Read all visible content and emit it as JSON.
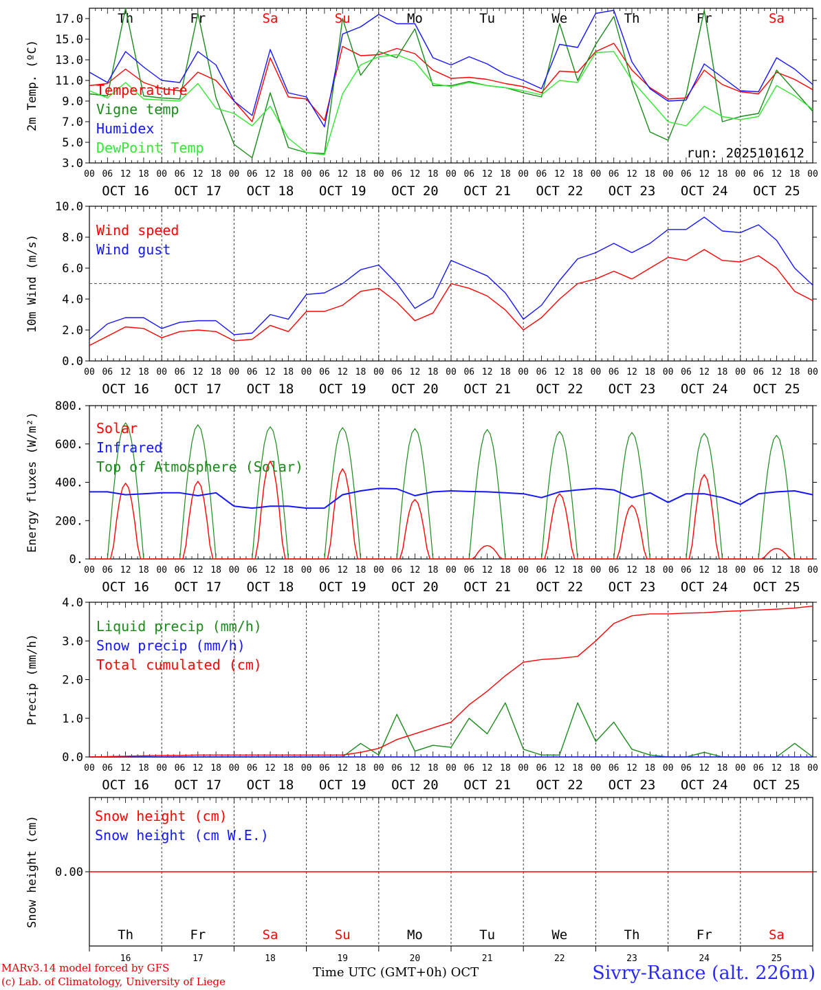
{
  "colors": {
    "red": "#ff0000",
    "green": "#1a8a1a",
    "blue": "#1515ff",
    "lime": "#33e833",
    "axis": "#000000"
  },
  "days": {
    "weekday": [
      "Th",
      "Fr",
      "Sa",
      "Su",
      "Mo",
      "Tu",
      "We",
      "Th",
      "Fr",
      "Sa"
    ],
    "weekend": [
      false,
      false,
      true,
      true,
      false,
      false,
      false,
      false,
      false,
      true
    ],
    "dates": [
      "OCT 16",
      "OCT 17",
      "OCT 18",
      "OCT 19",
      "OCT 20",
      "OCT 21",
      "OCT 22",
      "OCT 23",
      "OCT 24",
      "OCT 25"
    ],
    "day_numbers": [
      "16",
      "17",
      "18",
      "19",
      "20",
      "21",
      "22",
      "23",
      "24",
      "25"
    ],
    "hour_labels": [
      "00",
      "06",
      "12",
      "18"
    ],
    "end_label": "00"
  },
  "footer": {
    "model": "MARv3.14 model forced by GFS",
    "lab": "(c) Lab. of Climatology, University of Liege",
    "axis_title": "Time UTC (GMT+0h) OCT",
    "station": "Sivry-Rance (alt. 226m)"
  },
  "chart_data": [
    {
      "type": "line",
      "title": "",
      "ylabel": "2m Temp. (ºC)",
      "ylim": [
        3,
        18
      ],
      "yticks": [
        3,
        5,
        7,
        9,
        11,
        13,
        15,
        17
      ],
      "ytick_labels": [
        "3.0",
        "5.0",
        "7.0",
        "9.0",
        "11.0",
        "13.0",
        "15.0",
        "17.0"
      ],
      "annotation": "run: 2025101612",
      "show_weekdays": true,
      "legend": [
        {
          "name": "Temperature",
          "color": "#ff0000"
        },
        {
          "name": "Vigne temp",
          "color": "#1a8a1a"
        },
        {
          "name": "Humidex",
          "color": "#1515ff"
        },
        {
          "name": "DewPoint Temp",
          "color": "#33e833"
        }
      ],
      "x_hours": [
        0,
        6,
        12,
        18,
        24,
        30,
        36,
        42,
        48,
        54,
        60,
        66,
        72,
        78,
        84,
        90,
        96,
        102,
        108,
        114,
        120,
        126,
        132,
        138,
        144,
        150,
        156,
        162,
        168,
        174,
        180,
        186,
        192,
        198,
        204,
        210,
        216,
        222,
        228,
        234,
        240
      ],
      "series": [
        {
          "name": "Temperature",
          "color": "#ff0000",
          "values": [
            10.5,
            10.7,
            12.1,
            10.8,
            10.2,
            10.0,
            11.8,
            11.0,
            9.0,
            7.0,
            13.2,
            9.4,
            9.2,
            7.1,
            14.3,
            13.4,
            13.5,
            14.1,
            13.6,
            12.0,
            11.2,
            11.3,
            11.1,
            10.7,
            10.4,
            9.8,
            11.9,
            11.8,
            13.8,
            14.6,
            12.0,
            10.3,
            9.2,
            9.3,
            12.0,
            10.6,
            9.9,
            9.7,
            11.8,
            11.1,
            10.1
          ]
        },
        {
          "name": "Vigne temp",
          "color": "#1a8a1a",
          "values": [
            9.7,
            9.5,
            18.0,
            9.5,
            9.3,
            9.2,
            17.5,
            9.3,
            4.8,
            3.5,
            9.8,
            4.5,
            4.0,
            3.9,
            17.0,
            11.5,
            13.8,
            13.2,
            16.0,
            10.5,
            10.5,
            10.9,
            10.5,
            10.3,
            9.8,
            9.4,
            16.5,
            11.0,
            14.5,
            17.2,
            10.8,
            6.0,
            5.2,
            9.6,
            17.8,
            7.0,
            7.5,
            7.8,
            12.0,
            10.0,
            8.0
          ]
        },
        {
          "name": "Humidex",
          "color": "#1515ff",
          "values": [
            11.8,
            10.8,
            13.8,
            12.3,
            11.0,
            10.8,
            13.8,
            12.5,
            9.0,
            7.6,
            14.0,
            9.8,
            9.4,
            6.5,
            15.5,
            16.2,
            17.4,
            16.5,
            16.5,
            13.2,
            12.5,
            13.3,
            12.6,
            11.6,
            11.0,
            10.2,
            14.5,
            14.2,
            17.5,
            17.8,
            12.8,
            10.2,
            9.0,
            9.1,
            12.6,
            11.3,
            10.0,
            9.9,
            13.2,
            12.1,
            10.6
          ]
        },
        {
          "name": "DewPoint Temp",
          "color": "#33e833",
          "values": [
            10.0,
            9.3,
            10.8,
            9.2,
            9.1,
            9.0,
            10.7,
            8.3,
            7.8,
            6.6,
            8.5,
            5.4,
            4.0,
            3.8,
            9.7,
            12.5,
            13.3,
            13.5,
            12.8,
            10.7,
            10.4,
            10.8,
            10.5,
            10.3,
            10.0,
            9.6,
            11.0,
            10.8,
            13.7,
            13.8,
            11.0,
            9.0,
            7.0,
            6.6,
            8.5,
            7.5,
            7.2,
            7.5,
            10.5,
            9.5,
            8.2
          ]
        }
      ]
    },
    {
      "type": "line",
      "ylabel": "10m Wind (m/s)",
      "ylim": [
        0,
        10
      ],
      "yticks": [
        0,
        2,
        4,
        6,
        8,
        10
      ],
      "ytick_labels": [
        "0.0",
        "2.0",
        "4.0",
        "6.0",
        "8.0",
        "10.0"
      ],
      "threshold": 5,
      "legend": [
        {
          "name": "Wind speed",
          "color": "#ff0000"
        },
        {
          "name": "Wind gust",
          "color": "#1515ff"
        }
      ],
      "x_hours": [
        0,
        6,
        12,
        18,
        24,
        30,
        36,
        42,
        48,
        54,
        60,
        66,
        72,
        78,
        84,
        90,
        96,
        102,
        108,
        114,
        120,
        126,
        132,
        138,
        144,
        150,
        156,
        162,
        168,
        174,
        180,
        186,
        192,
        198,
        204,
        210,
        216,
        222,
        228,
        234,
        240
      ],
      "series": [
        {
          "name": "Wind speed",
          "color": "#ff0000",
          "values": [
            1.0,
            1.6,
            2.2,
            2.1,
            1.5,
            1.9,
            2.0,
            1.9,
            1.3,
            1.4,
            2.3,
            1.9,
            3.2,
            3.2,
            3.6,
            4.5,
            4.7,
            3.8,
            2.6,
            3.1,
            5.0,
            4.7,
            4.2,
            3.3,
            2.0,
            2.8,
            4.0,
            5.0,
            5.3,
            5.8,
            5.3,
            6.0,
            6.7,
            6.5,
            7.2,
            6.5,
            6.4,
            6.8,
            6.0,
            4.5,
            3.9
          ]
        },
        {
          "name": "Wind gust",
          "color": "#1515ff",
          "values": [
            1.4,
            2.4,
            2.8,
            2.8,
            2.1,
            2.5,
            2.6,
            2.6,
            1.7,
            1.8,
            3.0,
            2.7,
            4.3,
            4.4,
            5.0,
            5.9,
            6.2,
            5.0,
            3.4,
            4.1,
            6.5,
            6.0,
            5.5,
            4.4,
            2.7,
            3.6,
            5.2,
            6.6,
            7.0,
            7.6,
            7.0,
            7.6,
            8.5,
            8.5,
            9.3,
            8.4,
            8.3,
            8.8,
            7.8,
            6.0,
            4.9
          ]
        }
      ]
    },
    {
      "type": "line",
      "ylabel": "Energy fluxes (W/m²)",
      "ylim": [
        0,
        800
      ],
      "yticks": [
        0,
        200,
        400,
        600,
        800
      ],
      "ytick_labels": [
        "0.",
        "200.",
        "400.",
        "600.",
        "800."
      ],
      "legend": [
        {
          "name": "Solar",
          "color": "#ff0000"
        },
        {
          "name": "Infrared",
          "color": "#1515ff"
        },
        {
          "name": "Top of Atmosphere (Solar)",
          "color": "#1a8a1a"
        }
      ],
      "daily_peaks": {
        "toa": [
          710,
          700,
          690,
          685,
          680,
          675,
          665,
          660,
          655,
          645
        ],
        "solar": [
          395,
          405,
          510,
          470,
          310,
          70,
          340,
          280,
          440,
          55
        ]
      },
      "x_hours": [
        0,
        6,
        12,
        18,
        24,
        30,
        36,
        42,
        48,
        54,
        60,
        66,
        72,
        78,
        84,
        90,
        96,
        102,
        108,
        114,
        120,
        126,
        132,
        138,
        144,
        150,
        156,
        162,
        168,
        174,
        180,
        186,
        192,
        198,
        204,
        210,
        216,
        222,
        228,
        234,
        240
      ],
      "series": [
        {
          "name": "Infrared",
          "color": "#1515ff",
          "values": [
            350,
            350,
            335,
            340,
            345,
            345,
            330,
            345,
            275,
            265,
            275,
            275,
            265,
            265,
            335,
            355,
            368,
            366,
            330,
            350,
            355,
            352,
            350,
            345,
            340,
            320,
            350,
            360,
            368,
            360,
            320,
            345,
            295,
            340,
            340,
            320,
            285,
            340,
            350,
            355,
            335
          ]
        }
      ]
    },
    {
      "type": "line",
      "ylabel": "Precip (mm/h)",
      "ylim": [
        0,
        4
      ],
      "yticks": [
        0,
        1,
        2,
        3,
        4
      ],
      "ytick_labels": [
        "0.0",
        "1.0",
        "2.0",
        "3.0",
        "4.0"
      ],
      "legend": [
        {
          "name": "Liquid precip (mm/h)",
          "color": "#1a8a1a"
        },
        {
          "name": "Snow precip (mm/h)",
          "color": "#1515ff"
        },
        {
          "name": "Total cumulated (cm)",
          "color": "#ff0000"
        }
      ],
      "x_hours": [
        0,
        6,
        12,
        18,
        24,
        30,
        36,
        42,
        48,
        54,
        60,
        66,
        72,
        78,
        84,
        90,
        96,
        102,
        108,
        114,
        120,
        126,
        132,
        138,
        144,
        150,
        156,
        162,
        168,
        174,
        180,
        186,
        192,
        198,
        204,
        210,
        216,
        222,
        228,
        234,
        240
      ],
      "series": [
        {
          "name": "Liquid precip (mm/h)",
          "color": "#1a8a1a",
          "values": [
            0,
            0,
            0,
            0,
            0,
            0,
            0,
            0,
            0,
            0,
            0,
            0,
            0,
            0,
            0,
            0.35,
            0.05,
            1.1,
            0.15,
            0.3,
            0.25,
            1.0,
            0.6,
            1.4,
            0.2,
            0.05,
            0.05,
            1.4,
            0.4,
            0.9,
            0.2,
            0.05,
            0,
            0,
            0.12,
            0,
            0,
            0,
            0,
            0.35,
            0
          ]
        },
        {
          "name": "Snow precip (mm/h)",
          "color": "#1515ff",
          "values": [
            0,
            0,
            0,
            0,
            0,
            0,
            0,
            0,
            0,
            0,
            0,
            0,
            0,
            0,
            0,
            0,
            0,
            0,
            0,
            0,
            0,
            0,
            0,
            0,
            0,
            0,
            0,
            0,
            0,
            0,
            0,
            0,
            0,
            0,
            0,
            0,
            0,
            0,
            0,
            0,
            0
          ]
        },
        {
          "name": "Total cumulated (cm)",
          "color": "#ff0000",
          "values": [
            0.0,
            0.01,
            0.02,
            0.03,
            0.04,
            0.04,
            0.05,
            0.05,
            0.05,
            0.05,
            0.05,
            0.05,
            0.05,
            0.05,
            0.05,
            0.12,
            0.22,
            0.45,
            0.6,
            0.75,
            0.9,
            1.35,
            1.7,
            2.1,
            2.45,
            2.52,
            2.55,
            2.6,
            3.0,
            3.45,
            3.65,
            3.7,
            3.7,
            3.72,
            3.73,
            3.76,
            3.78,
            3.8,
            3.82,
            3.85,
            3.9
          ]
        }
      ]
    },
    {
      "type": "line",
      "ylabel": "Snow height (cm)",
      "ylim": [
        -1,
        1
      ],
      "yticks": [
        0
      ],
      "ytick_labels": [
        "0.00"
      ],
      "legend": [
        {
          "name": "Snow height (cm)",
          "color": "#ff0000"
        },
        {
          "name": "Snow height (cm W.E.)",
          "color": "#1515ff"
        }
      ],
      "x_hours": [
        0,
        240
      ],
      "series": [
        {
          "name": "Snow height (cm)",
          "color": "#ff0000",
          "values": [
            0,
            0
          ]
        }
      ]
    }
  ]
}
